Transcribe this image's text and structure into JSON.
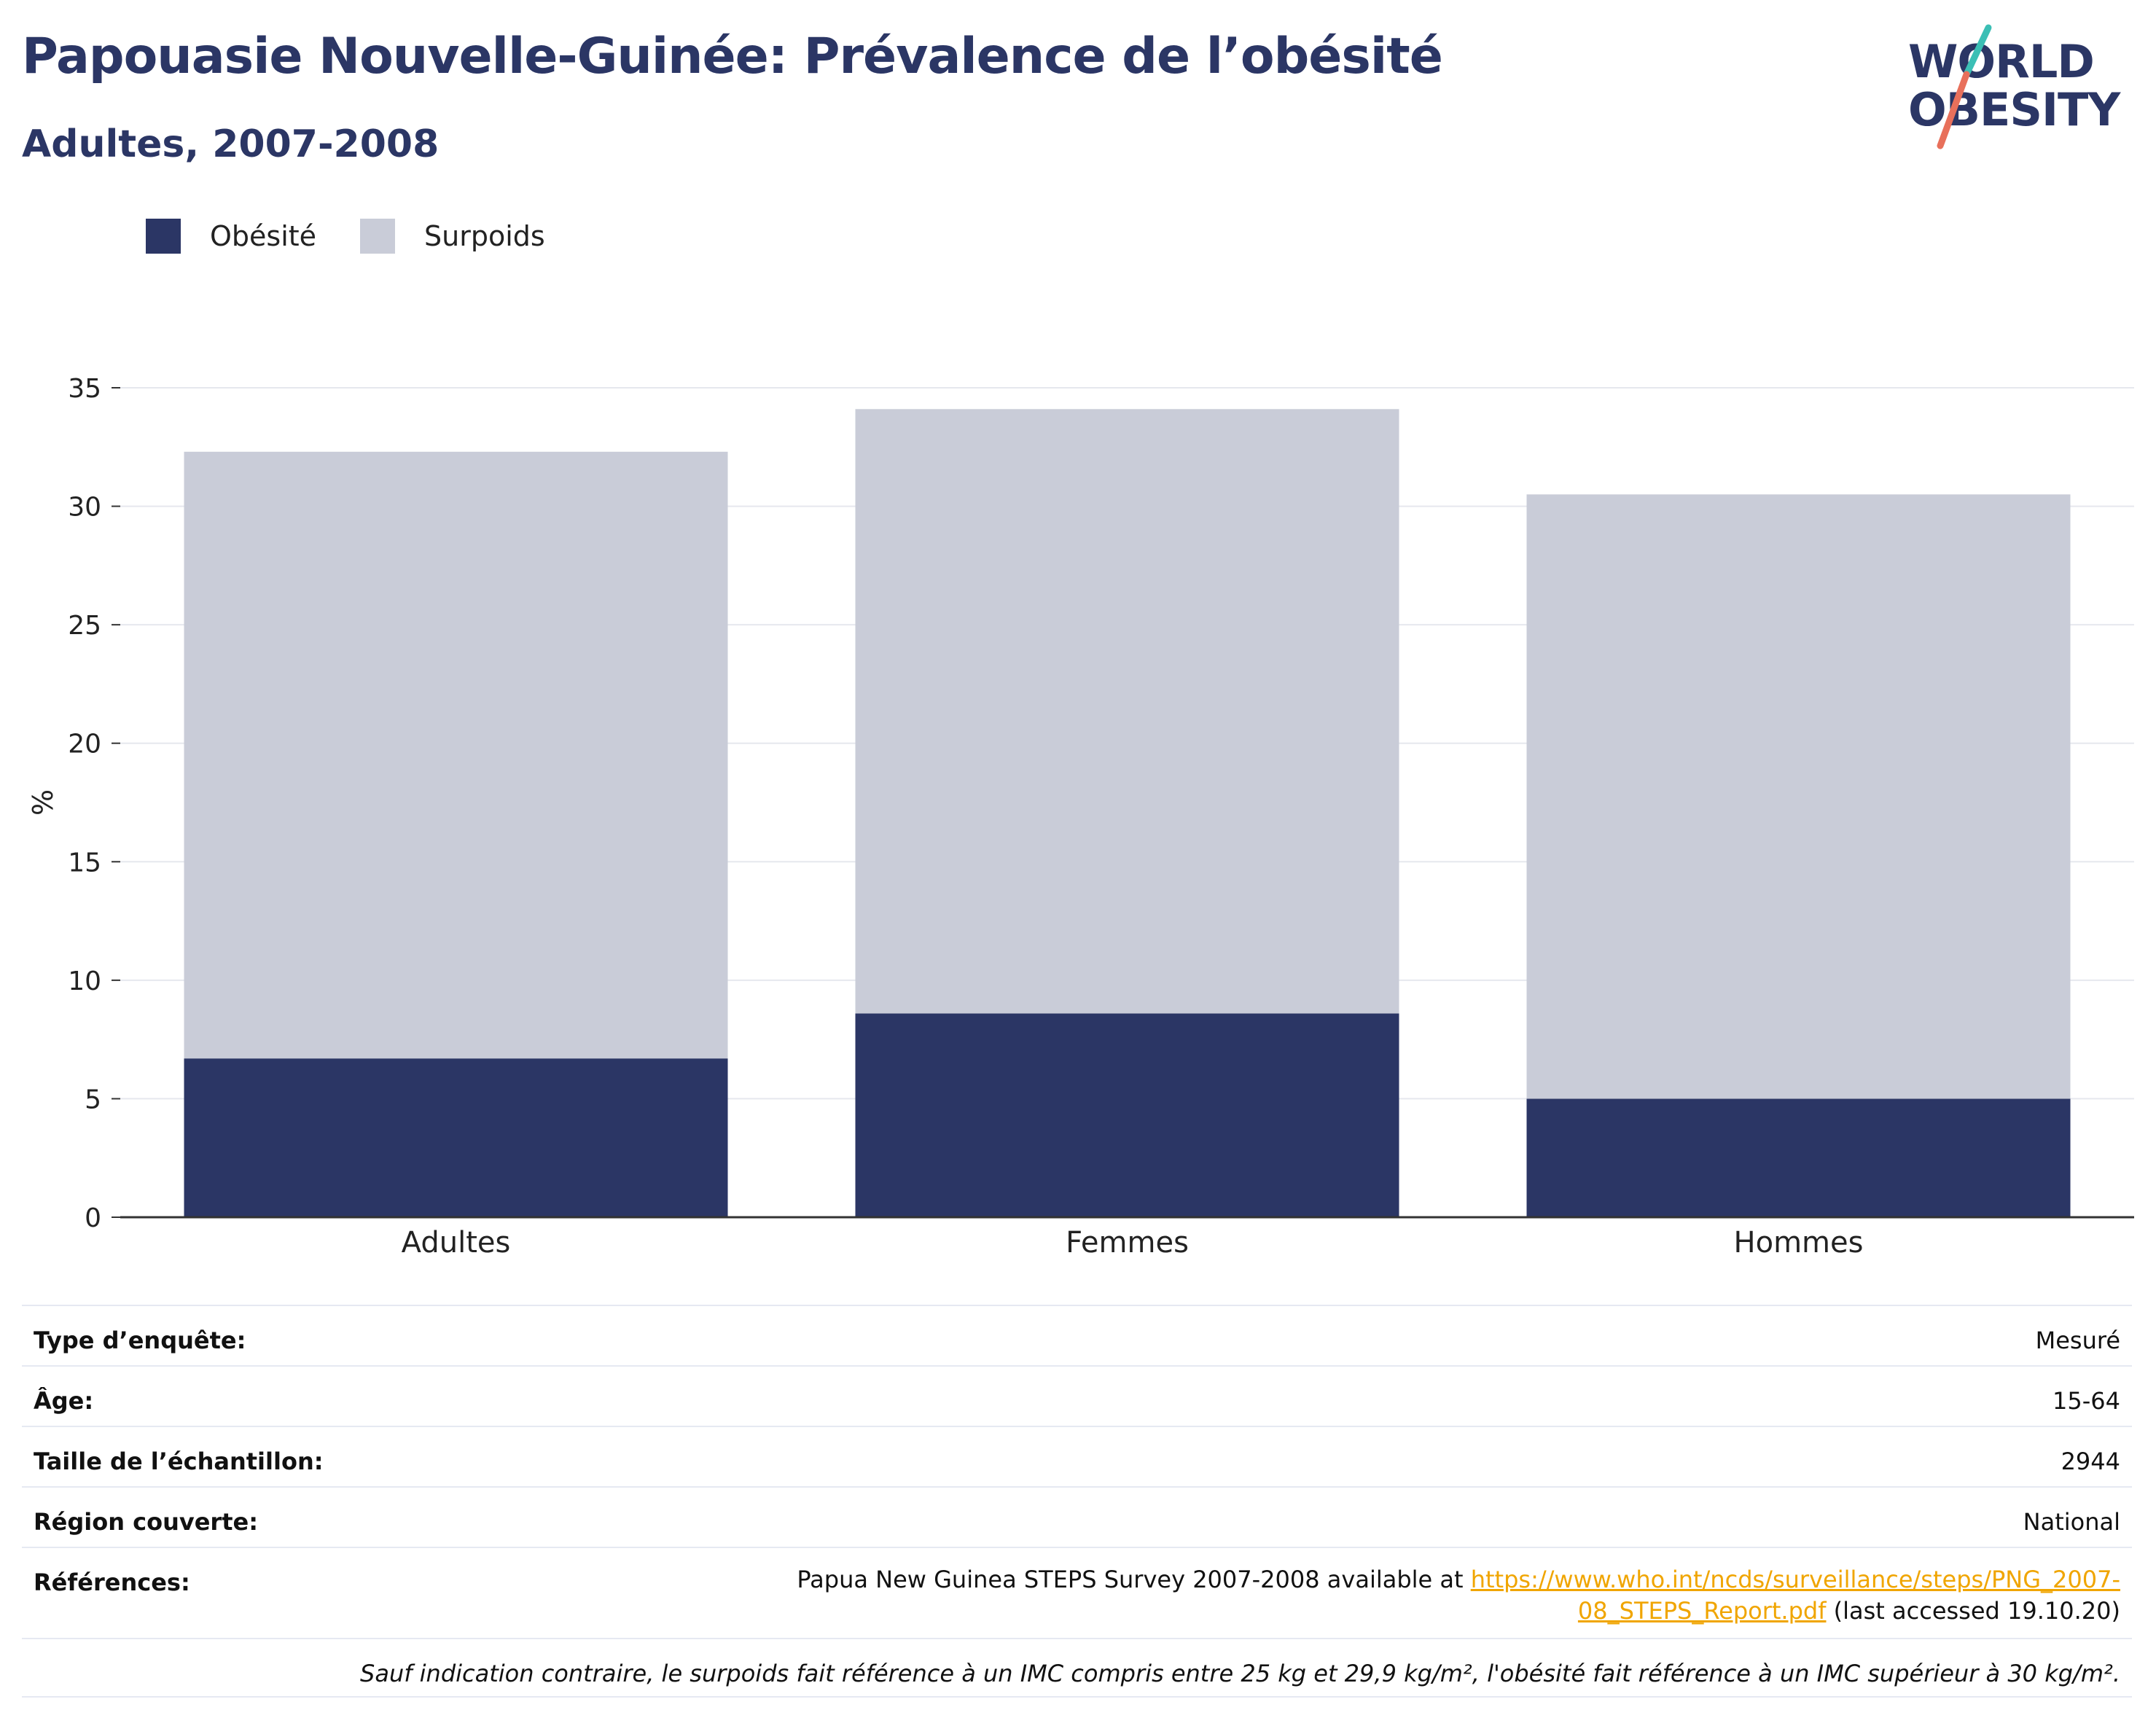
{
  "header": {
    "title": "Papouasie Nouvelle-Guinée: Prévalence de l’obésité",
    "subtitle": "Adultes, 2007-2008"
  },
  "logo": {
    "line1": "WORLD",
    "line2": "OBESITY"
  },
  "colors": {
    "obesite": "#2b3665",
    "surpoids": "#c9ccd8",
    "title": "#2b3665",
    "link": "#f0a500"
  },
  "chart_data": {
    "type": "bar",
    "stacked": true,
    "categories": [
      "Adultes",
      "Femmes",
      "Hommes"
    ],
    "series": [
      {
        "name": "Obésité",
        "values": [
          6.7,
          8.6,
          5.0
        ]
      },
      {
        "name": "Surpoids",
        "values": [
          25.6,
          25.5,
          25.5
        ]
      }
    ],
    "ylabel": "%",
    "xlabel": "",
    "ylim": [
      0,
      35
    ],
    "yticks": [
      0,
      5,
      10,
      15,
      20,
      25,
      30,
      35
    ],
    "grid": true,
    "legend": "top-left"
  },
  "info": {
    "rows": [
      {
        "key": "Type d’enquête:",
        "value": "Mesuré"
      },
      {
        "key": "Âge:",
        "value": "15-64"
      },
      {
        "key": "Taille de l’échantillon:",
        "value": "2944"
      },
      {
        "key": "Région couverte:",
        "value": "National"
      }
    ],
    "references": {
      "key": "Références:",
      "text_before": "Papua New Guinea STEPS Survey 2007-2008 available at ",
      "link": "https://www.who.int/ncds/surveillance/steps/PNG_2007-08_STEPS_Report.pdf",
      "text_after": " (last accessed 19.10.20)"
    },
    "note": "Sauf indication contraire, le surpoids fait référence à un IMC compris entre 25 kg et 29,9 kg/m², l'obésité fait référence à un IMC supérieur à 30 kg/m²."
  }
}
